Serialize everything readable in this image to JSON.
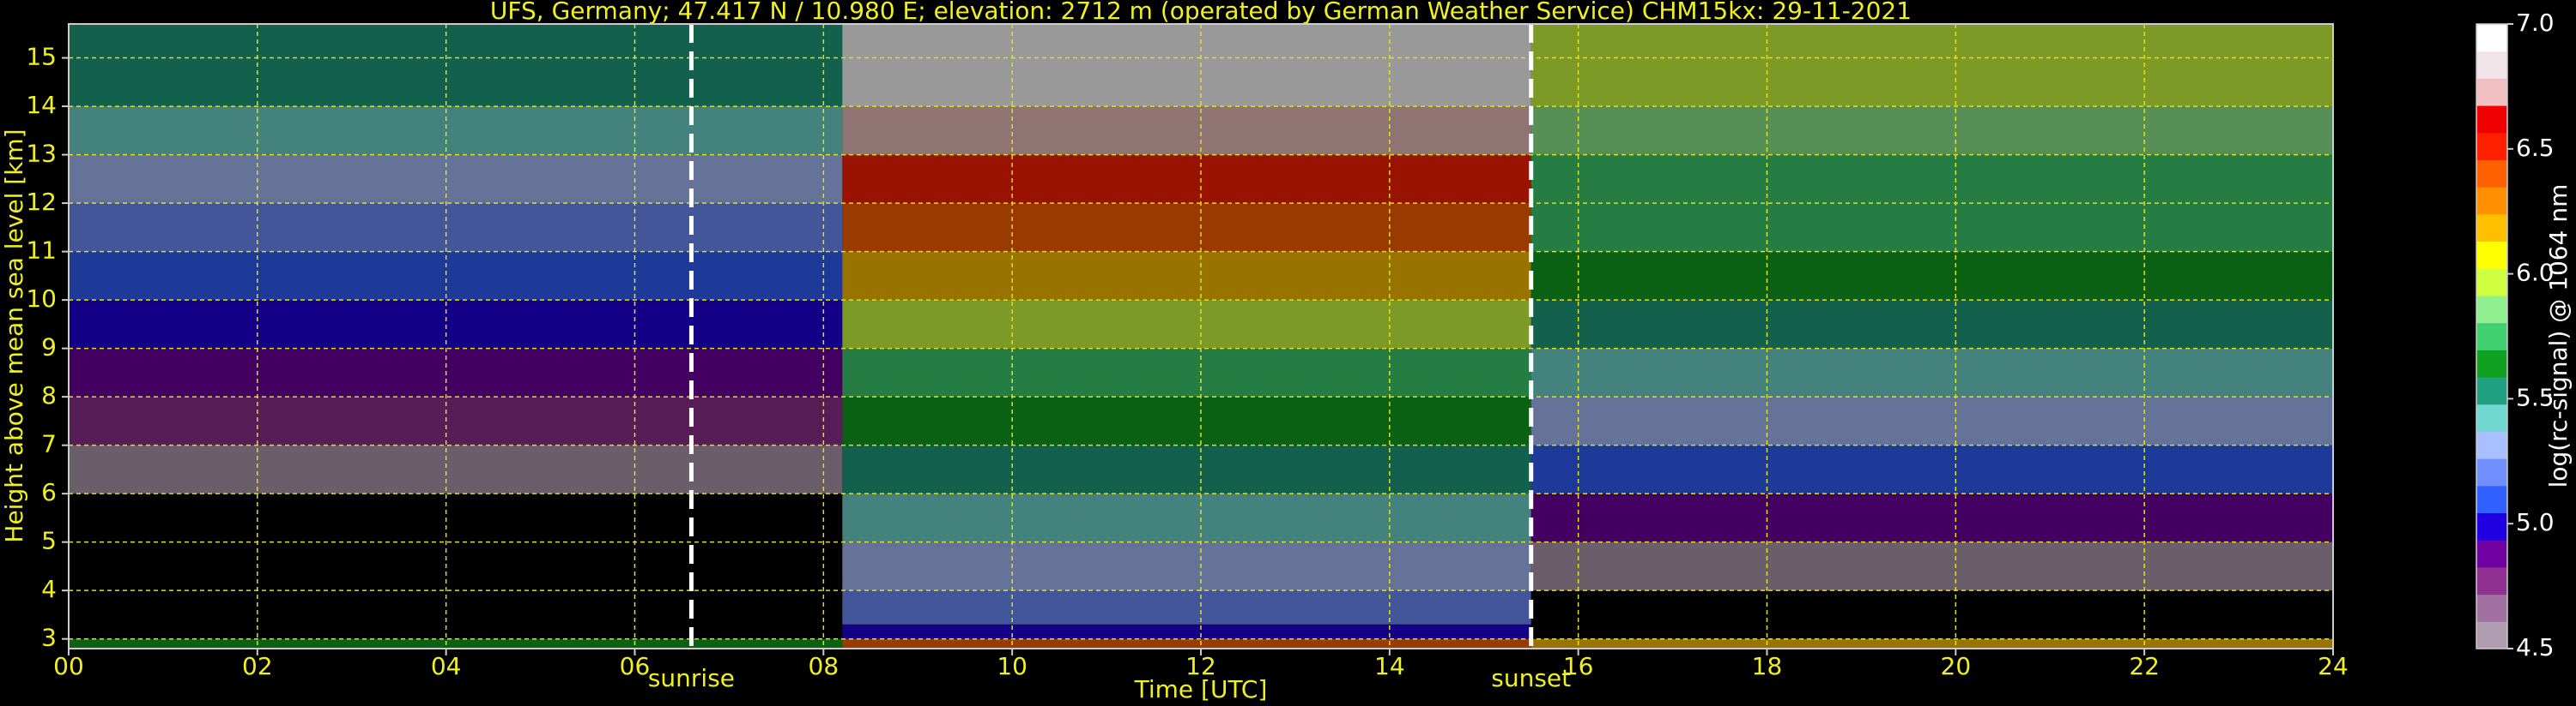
{
  "chart_data": {
    "type": "heatmap",
    "title": "UFS, Germany; 47.417 N / 10.980 E; elevation: 2712 m  (operated by German Weather Service)    CHM15kx: 29-11-2021",
    "x_label": "Time [UTC]",
    "y_label": "Height above mean sea level [km]",
    "x_edges": [
      0,
      8.2,
      15.5,
      24
    ],
    "y_edges": [
      2.8,
      3.0,
      3.3,
      4,
      5,
      6,
      7,
      8,
      9,
      10,
      11,
      12,
      13,
      14,
      15.7
    ],
    "z": [
      [
        5.6,
        6.4,
        6.2
      ],
      [
        4.0,
        5.0,
        4.0
      ],
      [
        4.0,
        5.2,
        4.0
      ],
      [
        4.2,
        5.3,
        4.6
      ],
      [
        4.4,
        5.4,
        4.9
      ],
      [
        4.6,
        5.5,
        5.1
      ],
      [
        4.8,
        5.6,
        5.3
      ],
      [
        4.9,
        5.8,
        5.4
      ],
      [
        5.0,
        6.0,
        5.5
      ],
      [
        5.1,
        6.2,
        5.6
      ],
      [
        5.2,
        6.4,
        5.7
      ],
      [
        5.3,
        6.5,
        5.8
      ],
      [
        5.4,
        6.7,
        5.9
      ],
      [
        5.5,
        6.9,
        6.0
      ]
    ],
    "xlim": [
      0,
      24
    ],
    "ylim": [
      2.8,
      15.7
    ],
    "xticks": [
      {
        "value": 0,
        "label": "00"
      },
      {
        "value": 2,
        "label": "02"
      },
      {
        "value": 4,
        "label": "04"
      },
      {
        "value": 6,
        "label": "06"
      },
      {
        "value": 8,
        "label": "08"
      },
      10,
      12,
      14,
      16,
      18,
      20,
      22,
      24
    ],
    "yticks": [
      3,
      4,
      5,
      6,
      7,
      8,
      9,
      10,
      11,
      12,
      13,
      14,
      15
    ],
    "grid": true,
    "markers": [
      {
        "label": "sunrise",
        "x": 6.6
      },
      {
        "label": "sunset",
        "x": 15.5
      }
    ],
    "colorbar": {
      "label": "log(rc-signal) @ 1064 nm",
      "clim": [
        4.5,
        7.0
      ],
      "ticks": [
        4.5,
        {
          "value": 5,
          "label": "5.0"
        },
        5.5,
        {
          "value": 6,
          "label": "6.0"
        },
        6.5,
        {
          "value": 7,
          "label": "7.0"
        }
      ],
      "colors": [
        "#b09cb0",
        "#a070a0",
        "#903090",
        "#7000a0",
        "#2000e0",
        "#3060ff",
        "#7090ff",
        "#a8c0ff",
        "#70d8d0",
        "#20a080",
        "#10a020",
        "#40d070",
        "#90f090",
        "#d0ff40",
        "#ffff00",
        "#ffc000",
        "#ff9000",
        "#ff6000",
        "#ff2000",
        "#f00000",
        "#f0c0c0",
        "#f0e4e8",
        "#ffffff"
      ]
    }
  }
}
